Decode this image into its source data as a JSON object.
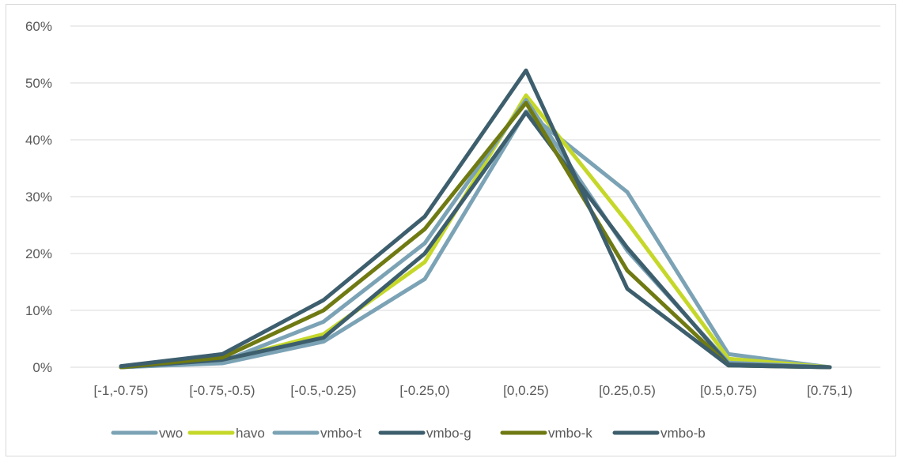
{
  "chart_data": {
    "type": "line",
    "title": "",
    "xlabel": "",
    "ylabel": "",
    "categories": [
      "[-1,-0.75)",
      "[-0.75,-0.5)",
      "[-0.5,-0.25)",
      "[-0.25,0)",
      "[0,0.25)",
      "[0.25,0.5)",
      "[0.5,0.75)",
      "[0.75,1)"
    ],
    "ylim": [
      0,
      0.6
    ],
    "yticks": [
      0,
      0.1,
      0.2,
      0.3,
      0.4,
      0.5,
      0.6
    ],
    "ytick_labels": [
      "0%",
      "10%",
      "20%",
      "30%",
      "40%",
      "50%",
      "60%"
    ],
    "grid": true,
    "legend_position": "bottom",
    "series": [
      {
        "name": "vwo",
        "color": "#7ba3b5",
        "values": [
          0.0,
          0.007,
          0.045,
          0.155,
          0.45,
          0.308,
          0.023,
          0.0
        ]
      },
      {
        "name": "havo",
        "color": "#c5d82a",
        "values": [
          0.0,
          0.012,
          0.058,
          0.185,
          0.478,
          0.255,
          0.015,
          0.0
        ]
      },
      {
        "name": "vmbo-t",
        "color": "#7ba3b5",
        "values": [
          0.0,
          0.01,
          0.08,
          0.218,
          0.47,
          0.205,
          0.008,
          0.0
        ]
      },
      {
        "name": "vmbo-g",
        "color": "#3d5e6d",
        "values": [
          0.0,
          0.013,
          0.052,
          0.2,
          0.448,
          0.21,
          0.005,
          0.0
        ]
      },
      {
        "name": "vmbo-k",
        "color": "#6f7a12",
        "values": [
          0.0,
          0.017,
          0.1,
          0.243,
          0.465,
          0.17,
          0.003,
          0.0
        ]
      },
      {
        "name": "vmbo-b",
        "color": "#3d5e6d",
        "values": [
          0.002,
          0.023,
          0.118,
          0.265,
          0.522,
          0.138,
          0.003,
          0.0
        ]
      }
    ]
  }
}
